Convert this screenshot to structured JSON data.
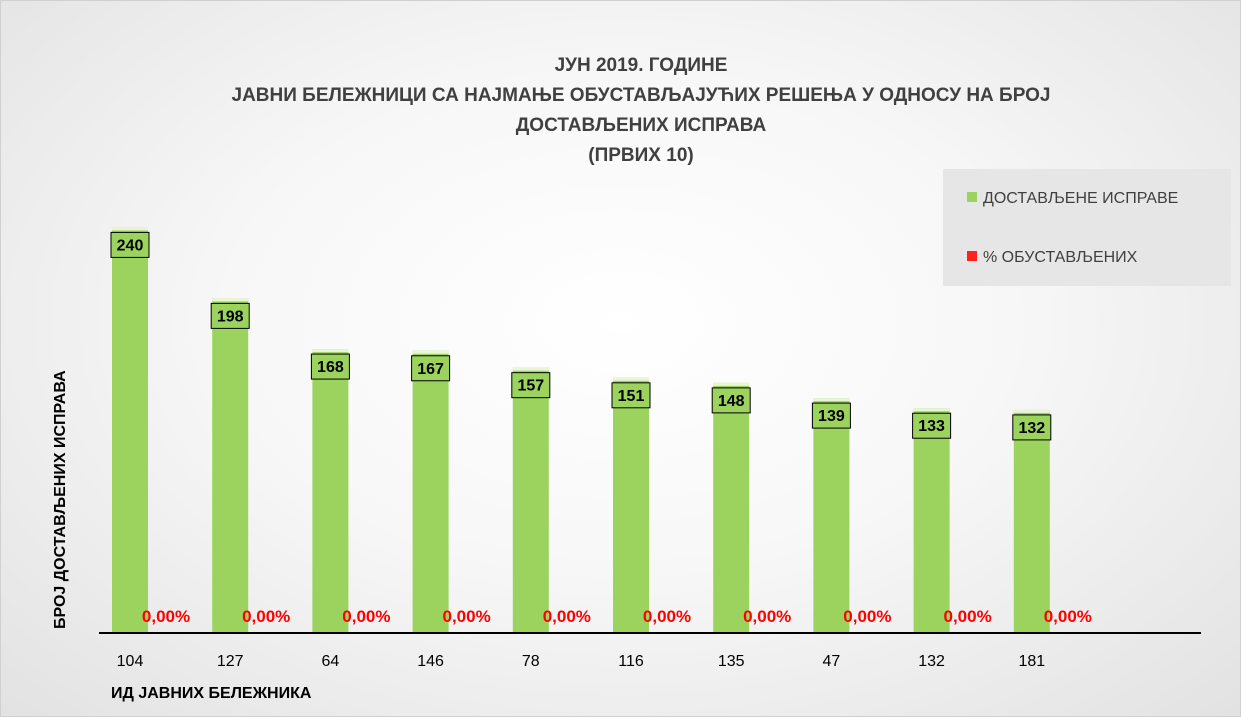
{
  "chart_data": {
    "type": "bar",
    "title_lines": [
      "ЈУН 2019. ГОДИНЕ",
      "ЈАВНИ БЕЛЕЖНИЦИ СА НАЈМАЊЕ ОБУСТАВЉАЈУЋИХ РЕШЕЊА У ОДНОСУ НА БРОЈ",
      "ДОСТАВЉЕНИХ ИСПРАВА",
      "(ПРВИХ 10)"
    ],
    "xlabel": "ИД ЈАВНИХ БЕЛЕЖНИКА",
    "ylabel": "БРОЈ ДОСТАВЉЕНИХ ИСПРАВА",
    "categories": [
      "104",
      "127",
      "64",
      "146",
      "78",
      "116",
      "135",
      "47",
      "132",
      "181"
    ],
    "series": [
      {
        "name": "ДОСТАВЉЕНЕ ИСПРАВЕ",
        "color": "#9bd35e",
        "values": [
          240,
          198,
          168,
          167,
          157,
          151,
          148,
          139,
          133,
          132
        ],
        "labels": [
          "240",
          "198",
          "168",
          "167",
          "157",
          "151",
          "148",
          "139",
          "133",
          "132"
        ]
      },
      {
        "name": "% ОБУСТАВЉЕНИХ",
        "color": "#ff2020",
        "values": [
          0,
          0,
          0,
          0,
          0,
          0,
          0,
          0,
          0,
          0
        ],
        "labels": [
          "0,00%",
          "0,00%",
          "0,00%",
          "0,00%",
          "0,00%",
          "0,00%",
          "0,00%",
          "0,00%",
          "0,00%",
          "0,00%"
        ]
      }
    ],
    "ylim": [
      0,
      250
    ],
    "grid": false,
    "legend_position": "top-right"
  }
}
